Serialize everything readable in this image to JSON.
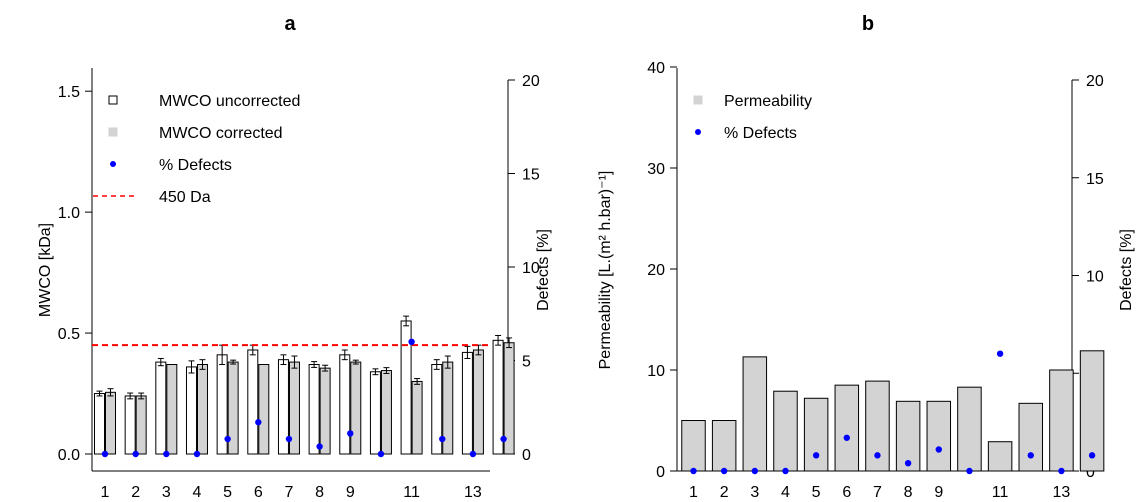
{
  "chart_data": [
    {
      "type": "bar",
      "panel_label": "a",
      "ylabel": "MWCO [kDa]",
      "y2label": "Defects [%]",
      "ylim": [
        0,
        1.6
      ],
      "yticks": [
        "0.0",
        "0.5",
        "1.0",
        "1.5"
      ],
      "y2lim": [
        0,
        20
      ],
      "y2ticks": [
        "0",
        "5",
        "10",
        "15",
        "20"
      ],
      "categories": [
        "1",
        "2",
        "3",
        "4",
        "5",
        "6",
        "7",
        "8",
        "9",
        "10",
        "11",
        "12",
        "13",
        "14"
      ],
      "xtick_labels": [
        "1",
        "2",
        "3",
        "4",
        "5",
        "6",
        "7",
        "8",
        "9",
        "",
        "11",
        "",
        "13",
        ""
      ],
      "series": [
        {
          "name": "MWCO uncorrected",
          "color": "#ffffff",
          "values": [
            0.25,
            0.24,
            0.38,
            0.36,
            0.41,
            0.43,
            0.39,
            0.37,
            0.41,
            0.34,
            0.55,
            0.37,
            0.42,
            0.47
          ],
          "errors": [
            0.01,
            0.012,
            0.015,
            0.025,
            0.04,
            0.02,
            0.02,
            0.012,
            0.02,
            0.012,
            0.02,
            0.02,
            0.025,
            0.02
          ]
        },
        {
          "name": "MWCO corrected",
          "color": "#d3d3d3",
          "values": [
            0.255,
            0.24,
            0.37,
            0.37,
            0.38,
            0.37,
            0.38,
            0.355,
            0.38,
            0.345,
            0.3,
            0.38,
            0.43,
            0.46
          ],
          "errors": [
            0.015,
            0.012,
            0.0,
            0.02,
            0.008,
            0.0,
            0.025,
            0.012,
            0.008,
            0.012,
            0.012,
            0.025,
            0.02,
            0.02
          ]
        },
        {
          "name": "% Defects",
          "color": "#0000ff",
          "axis": "right",
          "values": [
            0.0,
            0.0,
            0.0,
            0.0,
            0.8,
            1.7,
            0.8,
            0.4,
            1.1,
            0.0,
            6.0,
            0.8,
            0.0,
            0.8
          ]
        }
      ],
      "reference_line": {
        "name": "450  Da",
        "value": 0.45,
        "color": "#ff0000"
      }
    },
    {
      "type": "bar",
      "panel_label": "b",
      "ylabel": "Permeability [L.(m² h.bar)⁻¹]",
      "y2label": "Defects [%]",
      "ylim": [
        0,
        40
      ],
      "yticks": [
        "0",
        "10",
        "20",
        "30",
        "40"
      ],
      "y2lim": [
        0,
        20
      ],
      "y2ticks": [
        "0",
        "5",
        "10",
        "15",
        "20"
      ],
      "categories": [
        "1",
        "2",
        "3",
        "4",
        "5",
        "6",
        "7",
        "8",
        "9",
        "10",
        "11",
        "12",
        "13",
        "14"
      ],
      "xtick_labels": [
        "1",
        "2",
        "3",
        "4",
        "5",
        "6",
        "7",
        "8",
        "9",
        "",
        "11",
        "",
        "13",
        ""
      ],
      "series": [
        {
          "name": "Permeability",
          "color": "#d3d3d3",
          "values": [
            5.0,
            5.0,
            11.3,
            7.9,
            7.2,
            8.5,
            8.9,
            6.9,
            6.9,
            8.3,
            2.9,
            6.7,
            10.0,
            11.9
          ]
        },
        {
          "name": "% Defects",
          "color": "#0000ff",
          "axis": "right",
          "values": [
            0.0,
            0.0,
            0.0,
            0.0,
            0.8,
            1.7,
            0.8,
            0.4,
            1.1,
            0.0,
            6.0,
            0.8,
            0.0,
            0.8
          ]
        }
      ]
    }
  ]
}
